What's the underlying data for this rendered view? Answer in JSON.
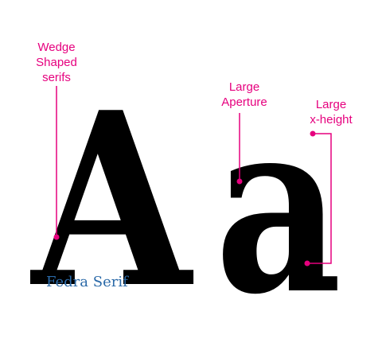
{
  "annotations": {
    "wedge": {
      "line1": "Wedge",
      "line2": "Shaped",
      "line3": "serifs"
    },
    "aperture": {
      "line1": "Large",
      "line2": "Aperture"
    },
    "xheight": {
      "line1": "Large",
      "line2": "x-height"
    }
  },
  "glyphs": {
    "upper": "A",
    "lower": "a"
  },
  "font_name": "Fedra Serif",
  "colors": {
    "annotation": "#e6007e",
    "font_name": "#2b6aa8",
    "glyph": "#000000"
  }
}
